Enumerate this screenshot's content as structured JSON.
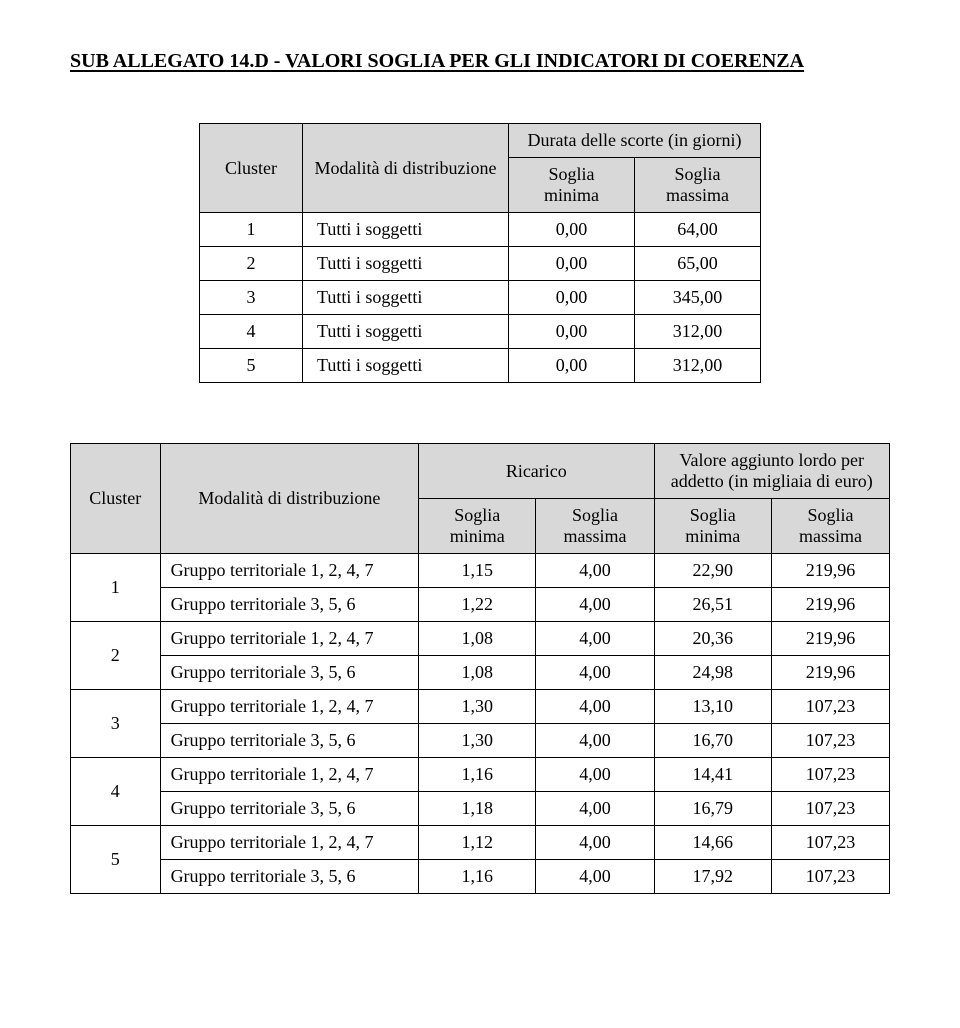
{
  "title": "SUB ALLEGATO 14.D - VALORI SOGLIA PER GLI INDICATORI DI COERENZA",
  "table1": {
    "headers": {
      "cluster": "Cluster",
      "mod": "Modalità di distribuzione",
      "group": "Durata delle scorte (in giorni)",
      "min": "Soglia minima",
      "max": "Soglia massima"
    },
    "rows": [
      {
        "cluster": "1",
        "mod": "Tutti i soggetti",
        "min": "0,00",
        "max": "64,00"
      },
      {
        "cluster": "2",
        "mod": "Tutti i soggetti",
        "min": "0,00",
        "max": "65,00"
      },
      {
        "cluster": "3",
        "mod": "Tutti i soggetti",
        "min": "0,00",
        "max": "345,00"
      },
      {
        "cluster": "4",
        "mod": "Tutti i soggetti",
        "min": "0,00",
        "max": "312,00"
      },
      {
        "cluster": "5",
        "mod": "Tutti i soggetti",
        "min": "0,00",
        "max": "312,00"
      }
    ]
  },
  "table2": {
    "headers": {
      "cluster": "Cluster",
      "mod": "Modalità di distribuzione",
      "group1": "Ricarico",
      "group2": "Valore aggiunto lordo per addetto (in migliaia di euro)",
      "min": "Soglia minima",
      "max": "Soglia massima"
    },
    "groups": [
      {
        "cluster": "1",
        "rows": [
          {
            "mod": "Gruppo territoriale 1, 2, 4, 7",
            "rmin": "1,15",
            "rmax": "4,00",
            "vmin": "22,90",
            "vmax": "219,96"
          },
          {
            "mod": "Gruppo territoriale 3, 5, 6",
            "rmin": "1,22",
            "rmax": "4,00",
            "vmin": "26,51",
            "vmax": "219,96"
          }
        ]
      },
      {
        "cluster": "2",
        "rows": [
          {
            "mod": "Gruppo territoriale 1, 2, 4, 7",
            "rmin": "1,08",
            "rmax": "4,00",
            "vmin": "20,36",
            "vmax": "219,96"
          },
          {
            "mod": "Gruppo territoriale 3, 5, 6",
            "rmin": "1,08",
            "rmax": "4,00",
            "vmin": "24,98",
            "vmax": "219,96"
          }
        ]
      },
      {
        "cluster": "3",
        "rows": [
          {
            "mod": "Gruppo territoriale 1, 2, 4, 7",
            "rmin": "1,30",
            "rmax": "4,00",
            "vmin": "13,10",
            "vmax": "107,23"
          },
          {
            "mod": "Gruppo territoriale 3, 5, 6",
            "rmin": "1,30",
            "rmax": "4,00",
            "vmin": "16,70",
            "vmax": "107,23"
          }
        ]
      },
      {
        "cluster": "4",
        "rows": [
          {
            "mod": "Gruppo territoriale 1, 2, 4, 7",
            "rmin": "1,16",
            "rmax": "4,00",
            "vmin": "14,41",
            "vmax": "107,23"
          },
          {
            "mod": "Gruppo territoriale 3, 5, 6",
            "rmin": "1,18",
            "rmax": "4,00",
            "vmin": "16,79",
            "vmax": "107,23"
          }
        ]
      },
      {
        "cluster": "5",
        "rows": [
          {
            "mod": "Gruppo territoriale 1, 2, 4, 7",
            "rmin": "1,12",
            "rmax": "4,00",
            "vmin": "14,66",
            "vmax": "107,23"
          },
          {
            "mod": "Gruppo territoriale 3, 5, 6",
            "rmin": "1,16",
            "rmax": "4,00",
            "vmin": "17,92",
            "vmax": "107,23"
          }
        ]
      }
    ]
  }
}
